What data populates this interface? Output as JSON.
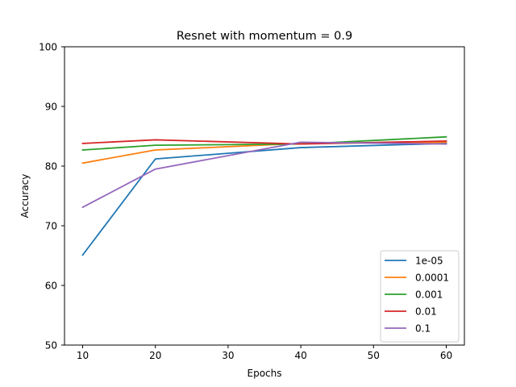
{
  "chart_data": {
    "type": "line",
    "title": "Resnet with momentum = 0.9",
    "xlabel": "Epochs",
    "ylabel": "Accuracy",
    "xlim": [
      7.5,
      62.5
    ],
    "ylim": [
      50,
      100
    ],
    "xticks": [
      10,
      20,
      30,
      40,
      50,
      60
    ],
    "yticks": [
      50,
      60,
      70,
      80,
      90,
      100
    ],
    "grid": false,
    "legend_position": "bottom-right",
    "x": [
      10,
      20,
      40,
      60
    ],
    "series": [
      {
        "name": "1e-05",
        "color": "#1f77b4",
        "values": [
          65.1,
          81.2,
          83.1,
          83.8
        ]
      },
      {
        "name": "0.0001",
        "color": "#ff7f0e",
        "values": [
          80.5,
          82.7,
          83.8,
          84.0
        ]
      },
      {
        "name": "0.001",
        "color": "#2ca02c",
        "values": [
          82.7,
          83.5,
          83.7,
          84.9
        ]
      },
      {
        "name": "0.01",
        "color": "#d62728",
        "values": [
          83.8,
          84.4,
          83.7,
          84.2
        ]
      },
      {
        "name": "0.1",
        "color": "#9467bd",
        "values": [
          73.1,
          79.5,
          84.0,
          83.7
        ]
      }
    ]
  }
}
